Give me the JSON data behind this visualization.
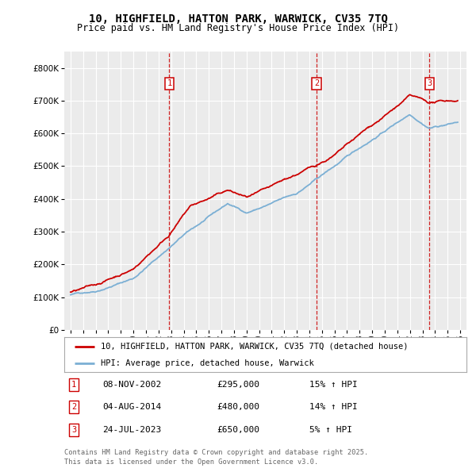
{
  "title_line1": "10, HIGHFIELD, HATTON PARK, WARWICK, CV35 7TQ",
  "title_line2": "Price paid vs. HM Land Registry's House Price Index (HPI)",
  "background_color": "#ffffff",
  "plot_bg_color": "#ebebeb",
  "grid_color": "#ffffff",
  "red_color": "#cc0000",
  "blue_color": "#7bafd4",
  "purchase_dates": [
    2002.86,
    2014.58,
    2023.56
  ],
  "purchase_prices": [
    295000,
    480000,
    650000
  ],
  "purchase_labels": [
    "1",
    "2",
    "3"
  ],
  "purchase_date_strs": [
    "08-NOV-2002",
    "04-AUG-2014",
    "24-JUL-2023"
  ],
  "purchase_price_strs": [
    "£295,000",
    "£480,000",
    "£650,000"
  ],
  "purchase_hpi_strs": [
    "15% ↑ HPI",
    "14% ↑ HPI",
    "5% ↑ HPI"
  ],
  "legend_line1": "10, HIGHFIELD, HATTON PARK, WARWICK, CV35 7TQ (detached house)",
  "legend_line2": "HPI: Average price, detached house, Warwick",
  "footer": "Contains HM Land Registry data © Crown copyright and database right 2025.\nThis data is licensed under the Open Government Licence v3.0.",
  "ylim": [
    0,
    850000
  ],
  "xlim_start": 1994.5,
  "xlim_end": 2026.5
}
